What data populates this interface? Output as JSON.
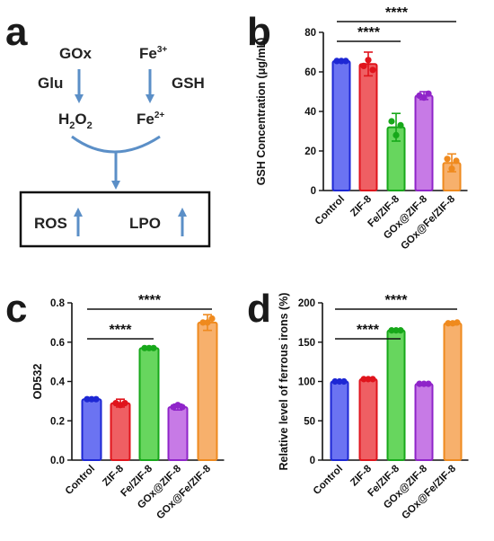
{
  "panels": [
    "a",
    "b",
    "c",
    "d"
  ],
  "scheme": {
    "reactant1": "GOx",
    "reactant2": "Fe",
    "reactant2_sup": "3+",
    "substrate1": "Glu",
    "substrate2": "GSH",
    "product1_base": "H",
    "product1_sub1": "2",
    "product1_mid": "O",
    "product1_sub2": "2",
    "product2": "Fe",
    "product2_sup": "2+",
    "outcome1": "ROS",
    "outcome2": "LPO",
    "arrow_color": "#5b8fc7"
  },
  "chart_data": [
    {
      "id": "b",
      "type": "bar",
      "categories": [
        "Control",
        "ZIF-8",
        "Fe/ZIF-8",
        "GOx@ZIF-8",
        "GOx@Fe/ZIF-8"
      ],
      "values": [
        65.5,
        64,
        32,
        48,
        14
      ],
      "errors": [
        0.8,
        6,
        7,
        2,
        4.5
      ],
      "points": [
        [
          65.5,
          65.5,
          65.5
        ],
        [
          63,
          66,
          61
        ],
        [
          35,
          28,
          33
        ],
        [
          48,
          47,
          49
        ],
        [
          16,
          11,
          15
        ]
      ],
      "ylabel": "GSH Concentration (μg/mL)",
      "ylim": [
        0,
        80
      ],
      "yticks": [
        0,
        20,
        40,
        60,
        80
      ],
      "significance": [
        {
          "from": 0,
          "to": 2,
          "label": "****"
        },
        {
          "from": 0,
          "to": 4,
          "label": "****"
        }
      ]
    },
    {
      "id": "c",
      "type": "bar",
      "categories": [
        "Control",
        "ZIF-8",
        "Fe/ZIF-8",
        "GOx@ZIF-8",
        "GOx@Fe/ZIF-8"
      ],
      "values": [
        0.31,
        0.29,
        0.57,
        0.27,
        0.7
      ],
      "errors": [
        0.005,
        0.02,
        0.005,
        0.015,
        0.04
      ],
      "points": [
        [
          0.31,
          0.31,
          0.31
        ],
        [
          0.29,
          0.28,
          0.29
        ],
        [
          0.57,
          0.57,
          0.57
        ],
        [
          0.27,
          0.28,
          0.27
        ],
        [
          0.7,
          0.7,
          0.72
        ]
      ],
      "ylabel": "OD532",
      "ylim": [
        0,
        0.8
      ],
      "yticks": [
        0.0,
        0.2,
        0.4,
        0.6,
        0.8
      ],
      "ytick_labels": [
        "0.0",
        "0.2",
        "0.4",
        "0.6",
        "0.8"
      ],
      "significance": [
        {
          "from": 0,
          "to": 2,
          "label": "****"
        },
        {
          "from": 0,
          "to": 4,
          "label": "****"
        }
      ]
    },
    {
      "id": "d",
      "type": "bar",
      "categories": [
        "Control",
        "ZIF-8",
        "Fe/ZIF-8",
        "GOx@ZIF-8",
        "GOx@Fe/ZIF-8"
      ],
      "values": [
        100,
        103,
        165,
        97,
        174
      ],
      "errors": [
        1,
        1.5,
        1,
        1,
        2
      ],
      "points": [
        [
          100,
          100,
          100
        ],
        [
          103,
          103,
          103
        ],
        [
          165,
          165,
          165
        ],
        [
          97,
          97,
          97
        ],
        [
          174,
          174,
          175
        ]
      ],
      "ylabel": "Relative level of ferrous irons (%)",
      "ylim": [
        0,
        200
      ],
      "yticks": [
        0,
        50,
        100,
        150,
        200
      ],
      "significance": [
        {
          "from": 0,
          "to": 2,
          "label": "****"
        },
        {
          "from": 0,
          "to": 4,
          "label": "****"
        }
      ]
    }
  ],
  "colors": {
    "fills": [
      "#6b73f2",
      "#ef5f63",
      "#67d65e",
      "#c77ae6",
      "#f7b06c"
    ],
    "edges": [
      "#1d27d4",
      "#e0141c",
      "#17a81a",
      "#8f24c9",
      "#ef8a1e"
    ]
  }
}
